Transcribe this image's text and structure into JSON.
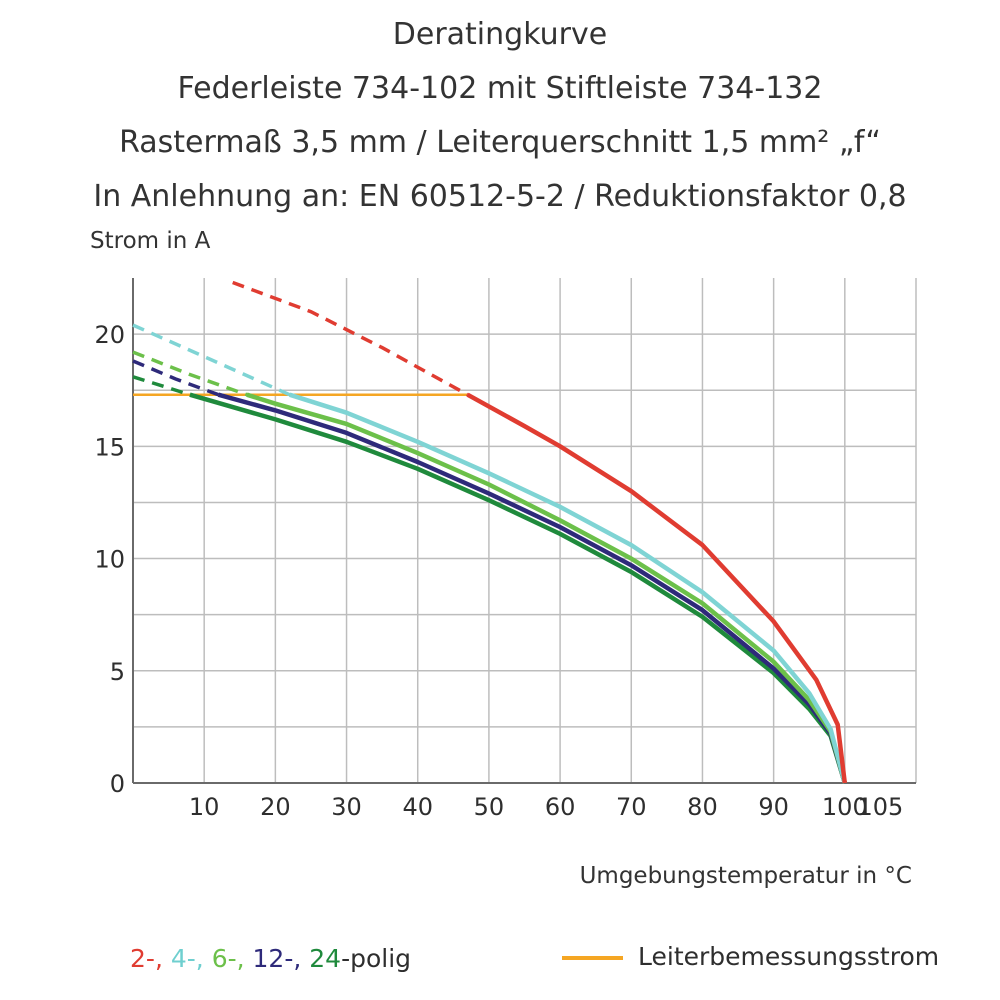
{
  "title_lines": [
    "Deratingkurve",
    "Federleiste 734-102 mit Stiftleiste 734-132",
    "Rastermaß 3,5 mm / Leiterquerschnitt 1,5 mm² „f“",
    "In Anlehnung an: EN 60512-5-2 / Reduktionsfaktor 0,8"
  ],
  "chart_data": {
    "type": "line",
    "ylabel": "Strom in A",
    "xlabel": "Umgebungstemperatur in  °C",
    "xlim": [
      0,
      110
    ],
    "ylim": [
      0,
      22.5
    ],
    "x_ticks": [
      10,
      20,
      30,
      40,
      50,
      60,
      70,
      80,
      90,
      100,
      105
    ],
    "y_ticks": [
      0,
      5,
      10,
      15,
      20
    ],
    "grid": true,
    "legend": {
      "position": "bottom",
      "groups": [
        {
          "text": "2-",
          "color": "#e03c31"
        },
        {
          "text": ", ",
          "color": "#e03c31"
        },
        {
          "text": "4-",
          "color": "#6fcfcf"
        },
        {
          "text": ", ",
          "color": "#6fcfcf"
        },
        {
          "text": "6-",
          "color": "#6cc04a"
        },
        {
          "text": ", ",
          "color": "#6cc04a"
        },
        {
          "text": "12-",
          "color": "#2e2a7a"
        },
        {
          "text": ", ",
          "color": "#2e2a7a"
        },
        {
          "text": "24",
          "color": "#1f8a3c"
        },
        {
          "text": "-polig",
          "color": "#2e2e2e"
        }
      ],
      "rated_label": "Leiterbemessungsstrom",
      "rated_color": "#f5a623"
    },
    "rated_current": {
      "y": 17.3,
      "x": [
        0,
        47
      ],
      "color": "#f5a623"
    },
    "series": [
      {
        "name": "2-polig",
        "color": "#e03c31",
        "dashed": [
          [
            14,
            22.3
          ],
          [
            25,
            21.0
          ],
          [
            35,
            19.4
          ],
          [
            47,
            17.3
          ]
        ],
        "values": [
          [
            47,
            17.3
          ],
          [
            55,
            15.9
          ],
          [
            60,
            15.0
          ],
          [
            70,
            13.0
          ],
          [
            80,
            10.6
          ],
          [
            90,
            7.2
          ],
          [
            96,
            4.6
          ],
          [
            99,
            2.6
          ],
          [
            100,
            0
          ]
        ]
      },
      {
        "name": "4-polig",
        "color": "#7fd4d4",
        "dashed": [
          [
            0,
            20.4
          ],
          [
            10,
            19.0
          ],
          [
            22,
            17.3
          ]
        ],
        "values": [
          [
            22,
            17.3
          ],
          [
            30,
            16.5
          ],
          [
            40,
            15.2
          ],
          [
            50,
            13.8
          ],
          [
            60,
            12.3
          ],
          [
            70,
            10.6
          ],
          [
            80,
            8.5
          ],
          [
            90,
            5.9
          ],
          [
            95,
            4.0
          ],
          [
            98,
            2.4
          ],
          [
            100,
            0
          ]
        ]
      },
      {
        "name": "6-polig",
        "color": "#6cc04a",
        "dashed": [
          [
            0,
            19.2
          ],
          [
            8,
            18.2
          ],
          [
            16,
            17.3
          ]
        ],
        "values": [
          [
            16,
            17.3
          ],
          [
            20,
            16.9
          ],
          [
            30,
            16.0
          ],
          [
            40,
            14.7
          ],
          [
            50,
            13.3
          ],
          [
            60,
            11.7
          ],
          [
            70,
            10.0
          ],
          [
            80,
            8.0
          ],
          [
            90,
            5.4
          ],
          [
            95,
            3.7
          ],
          [
            98,
            2.3
          ],
          [
            100,
            0
          ]
        ]
      },
      {
        "name": "12-polig",
        "color": "#2e2a7a",
        "dashed": [
          [
            0,
            18.8
          ],
          [
            6,
            18.0
          ],
          [
            12,
            17.3
          ]
        ],
        "values": [
          [
            12,
            17.3
          ],
          [
            20,
            16.6
          ],
          [
            30,
            15.6
          ],
          [
            40,
            14.3
          ],
          [
            50,
            12.9
          ],
          [
            60,
            11.4
          ],
          [
            70,
            9.7
          ],
          [
            80,
            7.7
          ],
          [
            90,
            5.1
          ],
          [
            95,
            3.5
          ],
          [
            98,
            2.2
          ],
          [
            100,
            0
          ]
        ]
      },
      {
        "name": "24-polig",
        "color": "#1f8a3c",
        "dashed": [
          [
            0,
            18.1
          ],
          [
            4,
            17.7
          ],
          [
            8,
            17.3
          ]
        ],
        "values": [
          [
            8,
            17.3
          ],
          [
            20,
            16.2
          ],
          [
            30,
            15.2
          ],
          [
            40,
            14.0
          ],
          [
            50,
            12.6
          ],
          [
            60,
            11.1
          ],
          [
            70,
            9.4
          ],
          [
            80,
            7.4
          ],
          [
            90,
            4.9
          ],
          [
            95,
            3.3
          ],
          [
            98,
            2.1
          ],
          [
            100,
            0
          ]
        ]
      }
    ]
  }
}
